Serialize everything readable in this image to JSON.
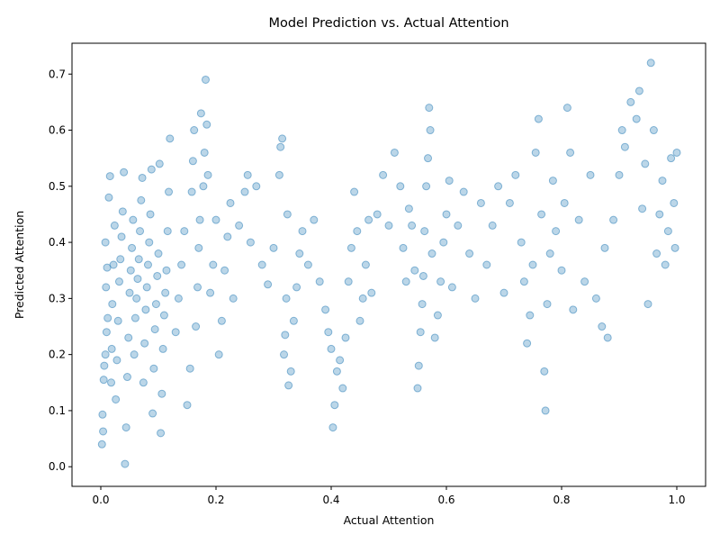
{
  "chart_data": {
    "type": "scatter",
    "title": "Model Prediction vs. Actual Attention",
    "xlabel": "Actual Attention",
    "ylabel": "Predicted Attention",
    "xlim": [
      -0.05,
      1.05
    ],
    "ylim": [
      -0.035,
      0.755
    ],
    "xticks": [
      0.0,
      0.2,
      0.4,
      0.6,
      0.8,
      1.0
    ],
    "xtick_labels": [
      "0.0",
      "0.2",
      "0.4",
      "0.6",
      "0.8",
      "1.0"
    ],
    "yticks": [
      0.0,
      0.1,
      0.2,
      0.3,
      0.4,
      0.5,
      0.6,
      0.7
    ],
    "ytick_labels": [
      "0.0",
      "0.1",
      "0.2",
      "0.3",
      "0.4",
      "0.5",
      "0.6",
      "0.7"
    ],
    "grid": false,
    "legend": "none",
    "marker_color": "#1f77b4",
    "marker_alpha": 0.3,
    "points": [
      [
        0.002,
        0.04
      ],
      [
        0.004,
        0.063
      ],
      [
        0.003,
        0.093
      ],
      [
        0.005,
        0.155
      ],
      [
        0.006,
        0.18
      ],
      [
        0.008,
        0.2
      ],
      [
        0.01,
        0.24
      ],
      [
        0.012,
        0.265
      ],
      [
        0.009,
        0.32
      ],
      [
        0.011,
        0.355
      ],
      [
        0.008,
        0.4
      ],
      [
        0.014,
        0.48
      ],
      [
        0.016,
        0.518
      ],
      [
        0.018,
        0.15
      ],
      [
        0.019,
        0.21
      ],
      [
        0.02,
        0.29
      ],
      [
        0.022,
        0.36
      ],
      [
        0.024,
        0.43
      ],
      [
        0.026,
        0.12
      ],
      [
        0.028,
        0.19
      ],
      [
        0.03,
        0.26
      ],
      [
        0.032,
        0.33
      ],
      [
        0.034,
        0.37
      ],
      [
        0.036,
        0.41
      ],
      [
        0.038,
        0.455
      ],
      [
        0.04,
        0.525
      ],
      [
        0.042,
        0.005
      ],
      [
        0.044,
        0.07
      ],
      [
        0.046,
        0.16
      ],
      [
        0.048,
        0.23
      ],
      [
        0.05,
        0.31
      ],
      [
        0.052,
        0.35
      ],
      [
        0.054,
        0.39
      ],
      [
        0.056,
        0.44
      ],
      [
        0.058,
        0.2
      ],
      [
        0.06,
        0.265
      ],
      [
        0.062,
        0.3
      ],
      [
        0.064,
        0.335
      ],
      [
        0.066,
        0.37
      ],
      [
        0.068,
        0.42
      ],
      [
        0.07,
        0.475
      ],
      [
        0.072,
        0.515
      ],
      [
        0.074,
        0.15
      ],
      [
        0.076,
        0.22
      ],
      [
        0.078,
        0.28
      ],
      [
        0.08,
        0.32
      ],
      [
        0.082,
        0.36
      ],
      [
        0.084,
        0.4
      ],
      [
        0.086,
        0.45
      ],
      [
        0.088,
        0.53
      ],
      [
        0.09,
        0.095
      ],
      [
        0.092,
        0.175
      ],
      [
        0.094,
        0.245
      ],
      [
        0.096,
        0.29
      ],
      [
        0.098,
        0.34
      ],
      [
        0.1,
        0.38
      ],
      [
        0.102,
        0.54
      ],
      [
        0.104,
        0.06
      ],
      [
        0.106,
        0.13
      ],
      [
        0.108,
        0.21
      ],
      [
        0.11,
        0.27
      ],
      [
        0.112,
        0.31
      ],
      [
        0.114,
        0.35
      ],
      [
        0.116,
        0.42
      ],
      [
        0.118,
        0.49
      ],
      [
        0.12,
        0.585
      ],
      [
        0.13,
        0.24
      ],
      [
        0.135,
        0.3
      ],
      [
        0.14,
        0.36
      ],
      [
        0.145,
        0.42
      ],
      [
        0.15,
        0.11
      ],
      [
        0.155,
        0.175
      ],
      [
        0.158,
        0.49
      ],
      [
        0.16,
        0.545
      ],
      [
        0.162,
        0.6
      ],
      [
        0.165,
        0.25
      ],
      [
        0.168,
        0.32
      ],
      [
        0.17,
        0.39
      ],
      [
        0.172,
        0.44
      ],
      [
        0.174,
        0.63
      ],
      [
        0.178,
        0.5
      ],
      [
        0.18,
        0.56
      ],
      [
        0.182,
        0.69
      ],
      [
        0.184,
        0.61
      ],
      [
        0.186,
        0.52
      ],
      [
        0.19,
        0.31
      ],
      [
        0.195,
        0.36
      ],
      [
        0.2,
        0.44
      ],
      [
        0.205,
        0.2
      ],
      [
        0.21,
        0.26
      ],
      [
        0.215,
        0.35
      ],
      [
        0.22,
        0.41
      ],
      [
        0.225,
        0.47
      ],
      [
        0.23,
        0.3
      ],
      [
        0.24,
        0.43
      ],
      [
        0.25,
        0.49
      ],
      [
        0.255,
        0.52
      ],
      [
        0.26,
        0.4
      ],
      [
        0.27,
        0.5
      ],
      [
        0.28,
        0.36
      ],
      [
        0.29,
        0.325
      ],
      [
        0.3,
        0.39
      ],
      [
        0.31,
        0.52
      ],
      [
        0.312,
        0.57
      ],
      [
        0.315,
        0.585
      ],
      [
        0.318,
        0.2
      ],
      [
        0.32,
        0.235
      ],
      [
        0.322,
        0.3
      ],
      [
        0.324,
        0.45
      ],
      [
        0.326,
        0.145
      ],
      [
        0.33,
        0.17
      ],
      [
        0.335,
        0.26
      ],
      [
        0.34,
        0.32
      ],
      [
        0.345,
        0.38
      ],
      [
        0.35,
        0.42
      ],
      [
        0.36,
        0.36
      ],
      [
        0.37,
        0.44
      ],
      [
        0.38,
        0.33
      ],
      [
        0.39,
        0.28
      ],
      [
        0.395,
        0.24
      ],
      [
        0.4,
        0.21
      ],
      [
        0.403,
        0.07
      ],
      [
        0.406,
        0.11
      ],
      [
        0.41,
        0.17
      ],
      [
        0.415,
        0.19
      ],
      [
        0.42,
        0.14
      ],
      [
        0.425,
        0.23
      ],
      [
        0.43,
        0.33
      ],
      [
        0.435,
        0.39
      ],
      [
        0.44,
        0.49
      ],
      [
        0.445,
        0.42
      ],
      [
        0.45,
        0.26
      ],
      [
        0.455,
        0.3
      ],
      [
        0.46,
        0.36
      ],
      [
        0.465,
        0.44
      ],
      [
        0.47,
        0.31
      ],
      [
        0.48,
        0.45
      ],
      [
        0.49,
        0.52
      ],
      [
        0.5,
        0.43
      ],
      [
        0.51,
        0.56
      ],
      [
        0.52,
        0.5
      ],
      [
        0.525,
        0.39
      ],
      [
        0.53,
        0.33
      ],
      [
        0.535,
        0.46
      ],
      [
        0.54,
        0.43
      ],
      [
        0.545,
        0.35
      ],
      [
        0.55,
        0.14
      ],
      [
        0.552,
        0.18
      ],
      [
        0.555,
        0.24
      ],
      [
        0.558,
        0.29
      ],
      [
        0.56,
        0.34
      ],
      [
        0.562,
        0.42
      ],
      [
        0.565,
        0.5
      ],
      [
        0.568,
        0.55
      ],
      [
        0.57,
        0.64
      ],
      [
        0.572,
        0.6
      ],
      [
        0.575,
        0.38
      ],
      [
        0.58,
        0.23
      ],
      [
        0.585,
        0.27
      ],
      [
        0.59,
        0.33
      ],
      [
        0.595,
        0.4
      ],
      [
        0.6,
        0.45
      ],
      [
        0.605,
        0.51
      ],
      [
        0.61,
        0.32
      ],
      [
        0.62,
        0.43
      ],
      [
        0.63,
        0.49
      ],
      [
        0.64,
        0.38
      ],
      [
        0.65,
        0.3
      ],
      [
        0.66,
        0.47
      ],
      [
        0.67,
        0.36
      ],
      [
        0.68,
        0.43
      ],
      [
        0.69,
        0.5
      ],
      [
        0.7,
        0.31
      ],
      [
        0.71,
        0.47
      ],
      [
        0.72,
        0.52
      ],
      [
        0.73,
        0.4
      ],
      [
        0.735,
        0.33
      ],
      [
        0.74,
        0.22
      ],
      [
        0.745,
        0.27
      ],
      [
        0.75,
        0.36
      ],
      [
        0.755,
        0.56
      ],
      [
        0.76,
        0.62
      ],
      [
        0.765,
        0.45
      ],
      [
        0.77,
        0.17
      ],
      [
        0.772,
        0.1
      ],
      [
        0.775,
        0.29
      ],
      [
        0.78,
        0.38
      ],
      [
        0.785,
        0.51
      ],
      [
        0.79,
        0.42
      ],
      [
        0.8,
        0.35
      ],
      [
        0.805,
        0.47
      ],
      [
        0.81,
        0.64
      ],
      [
        0.815,
        0.56
      ],
      [
        0.82,
        0.28
      ],
      [
        0.83,
        0.44
      ],
      [
        0.84,
        0.33
      ],
      [
        0.85,
        0.52
      ],
      [
        0.86,
        0.3
      ],
      [
        0.87,
        0.25
      ],
      [
        0.875,
        0.39
      ],
      [
        0.88,
        0.23
      ],
      [
        0.89,
        0.44
      ],
      [
        0.9,
        0.52
      ],
      [
        0.905,
        0.6
      ],
      [
        0.91,
        0.57
      ],
      [
        0.92,
        0.65
      ],
      [
        0.93,
        0.62
      ],
      [
        0.935,
        0.67
      ],
      [
        0.94,
        0.46
      ],
      [
        0.945,
        0.54
      ],
      [
        0.95,
        0.29
      ],
      [
        0.955,
        0.72
      ],
      [
        0.96,
        0.6
      ],
      [
        0.965,
        0.38
      ],
      [
        0.97,
        0.45
      ],
      [
        0.975,
        0.51
      ],
      [
        0.98,
        0.36
      ],
      [
        0.985,
        0.42
      ],
      [
        0.99,
        0.55
      ],
      [
        0.995,
        0.47
      ],
      [
        1.0,
        0.56
      ],
      [
        0.997,
        0.39
      ]
    ]
  }
}
